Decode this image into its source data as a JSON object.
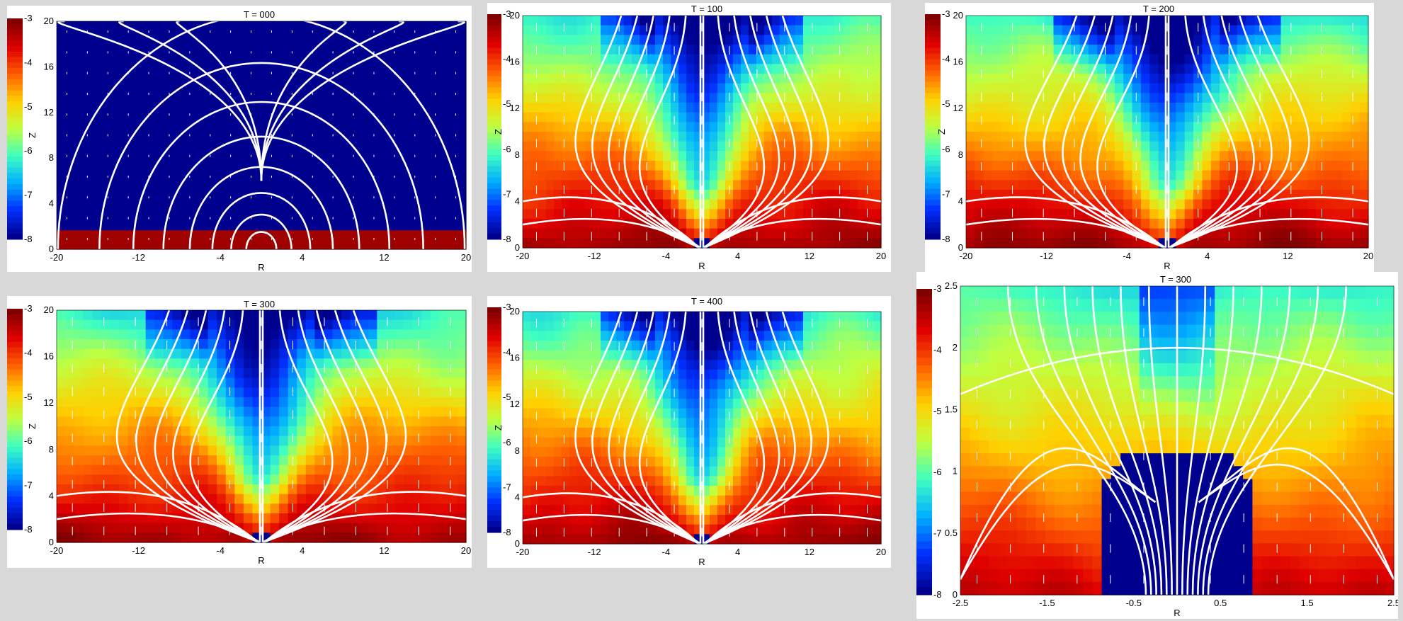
{
  "page": {
    "background": "#d8d8d8"
  },
  "colormap": [
    "#00008f",
    "#0030ff",
    "#00b0ff",
    "#40ffc0",
    "#c0ff40",
    "#ffd000",
    "#ff6000",
    "#e00000",
    "#800000"
  ],
  "chart_data": [
    {
      "type": "heatmap",
      "title": "T = 000",
      "xlabel": "R",
      "ylabel": "Z",
      "xlim": [
        -20,
        20
      ],
      "ylim": [
        0,
        20
      ],
      "xticks": [
        "-20",
        "-12",
        "-4",
        "4",
        "12",
        "20"
      ],
      "yticks": [
        "0",
        "4",
        "8",
        "12",
        "16",
        "20"
      ],
      "colorbar": {
        "min": -8,
        "max": -3,
        "ticks": [
          "-3",
          "-4",
          "-5",
          "-6",
          "-7",
          "-8"
        ]
      },
      "field_pattern": "initial-atmosphere",
      "field_lines": "dipole-loops",
      "grid": false
    },
    {
      "type": "heatmap",
      "title": "T = 100",
      "xlabel": "R",
      "ylabel": "Z",
      "xlim": [
        -20,
        20
      ],
      "ylim": [
        0,
        20
      ],
      "xticks": [
        "-20",
        "-12",
        "-4",
        "4",
        "12",
        "20"
      ],
      "yticks": [
        "0",
        "4",
        "8",
        "12",
        "16",
        "20"
      ],
      "colorbar": {
        "min": -8,
        "max": -3,
        "ticks": [
          "-3",
          "-4",
          "-5",
          "-6",
          "-7",
          "-8"
        ]
      },
      "field_pattern": "dense-disk-with-polar-funnel",
      "field_lines": "open-outflow",
      "grid": false
    },
    {
      "type": "heatmap",
      "title": "T = 200",
      "xlabel": "R",
      "ylabel": "Z",
      "xlim": [
        -20,
        20
      ],
      "ylim": [
        0,
        20
      ],
      "xticks": [
        "-20",
        "-12",
        "-4",
        "4",
        "12",
        "20"
      ],
      "yticks": [
        "0",
        "4",
        "8",
        "12",
        "16",
        "20"
      ],
      "colorbar": {
        "min": -8,
        "max": -3,
        "ticks": [
          "-3",
          "-4",
          "-5",
          "-6",
          "-7",
          "-8"
        ]
      },
      "field_pattern": "dense-disk-with-polar-funnel",
      "field_lines": "open-outflow",
      "grid": false
    },
    {
      "type": "heatmap",
      "title": "T = 300",
      "xlabel": "R",
      "ylabel": "Z",
      "xlim": [
        -20,
        20
      ],
      "ylim": [
        0,
        20
      ],
      "xticks": [
        "-20",
        "-12",
        "-4",
        "4",
        "12",
        "20"
      ],
      "yticks": [
        "0",
        "4",
        "8",
        "12",
        "16",
        "20"
      ],
      "colorbar": {
        "min": -8,
        "max": -3,
        "ticks": [
          "-3",
          "-4",
          "-5",
          "-6",
          "-7",
          "-8"
        ]
      },
      "field_pattern": "dense-disk-with-polar-funnel",
      "field_lines": "open-outflow",
      "grid": false
    },
    {
      "type": "heatmap",
      "title": "T = 400",
      "xlabel": "R",
      "ylabel": "Z",
      "xlim": [
        -20,
        20
      ],
      "ylim": [
        0,
        20
      ],
      "xticks": [
        "-20",
        "-12",
        "-4",
        "4",
        "12",
        "20"
      ],
      "yticks": [
        "0",
        "4",
        "8",
        "12",
        "16",
        "20"
      ],
      "colorbar": {
        "min": -8,
        "max": -3,
        "ticks": [
          "-3",
          "-4",
          "-5",
          "-6",
          "-7",
          "-8"
        ]
      },
      "field_pattern": "dense-disk-with-polar-funnel",
      "field_lines": "open-outflow",
      "grid": false
    },
    {
      "type": "heatmap",
      "title": "T = 300",
      "xlabel": "R",
      "ylabel": "",
      "xlim": [
        -2.5,
        2.5
      ],
      "ylim": [
        0,
        2.5
      ],
      "xticks": [
        "-2.5",
        "-1.5",
        "-0.5",
        "0.5",
        "1.5",
        "2.5"
      ],
      "yticks": [
        "0",
        "0.5",
        "1",
        "1.5",
        "2",
        "2.5"
      ],
      "colorbar": {
        "min": -8,
        "max": -3,
        "ticks": [
          "-3",
          "-4",
          "-5",
          "-6",
          "-7",
          "-8"
        ]
      },
      "field_pattern": "zoom-with-stellar-core",
      "field_lines": "zoom-outflow",
      "grid": false
    }
  ]
}
